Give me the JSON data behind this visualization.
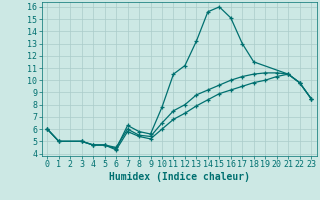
{
  "xlabel": "Humidex (Indice chaleur)",
  "bg_color": "#cce8e4",
  "grid_color": "#aaccca",
  "line_color": "#007070",
  "xlim": [
    -0.5,
    23.5
  ],
  "ylim": [
    3.8,
    16.4
  ],
  "xticks": [
    0,
    1,
    2,
    3,
    4,
    5,
    6,
    7,
    8,
    9,
    10,
    11,
    12,
    13,
    14,
    15,
    16,
    17,
    18,
    19,
    20,
    21,
    22,
    23
  ],
  "yticks": [
    4,
    5,
    6,
    7,
    8,
    9,
    10,
    11,
    12,
    13,
    14,
    15,
    16
  ],
  "line1_x": [
    0,
    1,
    3,
    4,
    5,
    6,
    7,
    8,
    9,
    10,
    11,
    12,
    13,
    14,
    15,
    16,
    17,
    18,
    21,
    22,
    23
  ],
  "line1_y": [
    6.0,
    5.0,
    5.0,
    4.7,
    4.7,
    4.4,
    6.3,
    5.8,
    5.6,
    7.8,
    10.5,
    11.2,
    13.2,
    15.6,
    16.0,
    15.1,
    13.0,
    11.5,
    10.5,
    9.8,
    8.5
  ],
  "line2_x": [
    0,
    1,
    3,
    4,
    5,
    6,
    7,
    8,
    9,
    10,
    11,
    12,
    13,
    14,
    15,
    16,
    17,
    18,
    19,
    20,
    21,
    22,
    23
  ],
  "line2_y": [
    6.0,
    5.0,
    5.0,
    4.7,
    4.7,
    4.5,
    6.0,
    5.5,
    5.4,
    6.5,
    7.5,
    8.0,
    8.8,
    9.2,
    9.6,
    10.0,
    10.3,
    10.5,
    10.6,
    10.6,
    10.5,
    9.8,
    8.5
  ],
  "line3_x": [
    0,
    1,
    3,
    4,
    5,
    6,
    7,
    8,
    9,
    10,
    11,
    12,
    13,
    14,
    15,
    16,
    17,
    18,
    19,
    20,
    21,
    22,
    23
  ],
  "line3_y": [
    6.0,
    5.0,
    5.0,
    4.7,
    4.7,
    4.3,
    5.8,
    5.4,
    5.2,
    6.0,
    6.8,
    7.3,
    7.9,
    8.4,
    8.9,
    9.2,
    9.5,
    9.8,
    10.0,
    10.3,
    10.5,
    9.8,
    8.5
  ],
  "xlabel_fontsize": 7,
  "tick_fontsize": 6
}
